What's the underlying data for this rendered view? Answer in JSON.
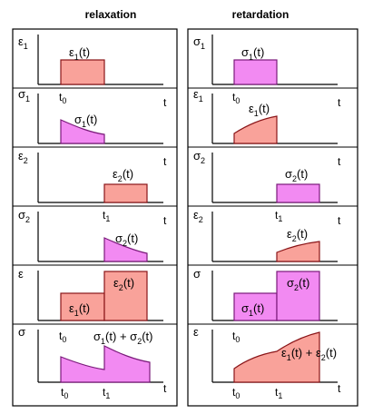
{
  "headers": {
    "left": "relaxation",
    "right": "retardation"
  },
  "colors": {
    "strain_fill": "#f9a29a",
    "strain_edge": "#8a1518",
    "stress_fill": "#f28af2",
    "stress_edge": "#7a1a7a"
  },
  "left": {
    "rows": [
      {
        "sym": "ε",
        "sub": "1",
        "curve_base": "ε",
        "curve_sub": "1",
        "curve_arg": "(t)"
      },
      {
        "sym": "σ",
        "sub": "1",
        "curve_base": "σ",
        "curve_sub": "1",
        "curve_arg": "(t)"
      },
      {
        "sym": "ε",
        "sub": "2",
        "curve_base": "ε",
        "curve_sub": "2",
        "curve_arg": "(t)"
      },
      {
        "sym": "σ",
        "sub": "2",
        "curve_base": "σ",
        "curve_sub": "2",
        "curve_arg": "(t)"
      },
      {
        "sym": "ε",
        "sub": "",
        "curve_base": "ε",
        "curve_sub": "1",
        "curve_arg": "(t)",
        "curve2_base": "ε",
        "curve2_sub": "2",
        "curve2_arg": "(t)"
      },
      {
        "sym": "σ",
        "sub": "",
        "sum_a": "σ",
        "sum_a_sub": "1",
        "sum_b": "σ",
        "sum_b_sub": "2"
      }
    ]
  },
  "right": {
    "rows": [
      {
        "sym": "σ",
        "sub": "1",
        "curve_base": "σ",
        "curve_sub": "1",
        "curve_arg": "(t)"
      },
      {
        "sym": "ε",
        "sub": "1",
        "curve_base": "ε",
        "curve_sub": "1",
        "curve_arg": "(t)"
      },
      {
        "sym": "σ",
        "sub": "2",
        "curve_base": "σ",
        "curve_sub": "2",
        "curve_arg": "(t)"
      },
      {
        "sym": "ε",
        "sub": "2",
        "curve_base": "ε",
        "curve_sub": "2",
        "curve_arg": "(t)"
      },
      {
        "sym": "σ",
        "sub": "",
        "curve_base": "σ",
        "curve_sub": "1",
        "curve_arg": "(t)",
        "curve2_base": "σ",
        "curve2_sub": "2",
        "curve2_arg": "(t)"
      },
      {
        "sym": "ε",
        "sub": "",
        "sum_a": "ε",
        "sum_a_sub": "1",
        "sum_b": "ε",
        "sum_b_sub": "2"
      }
    ]
  },
  "axis": {
    "t": "t",
    "t0": "t",
    "t0_sub": "0",
    "t1": "t",
    "t1_sub": "1",
    "paren": "(t)",
    "plus": "+"
  }
}
